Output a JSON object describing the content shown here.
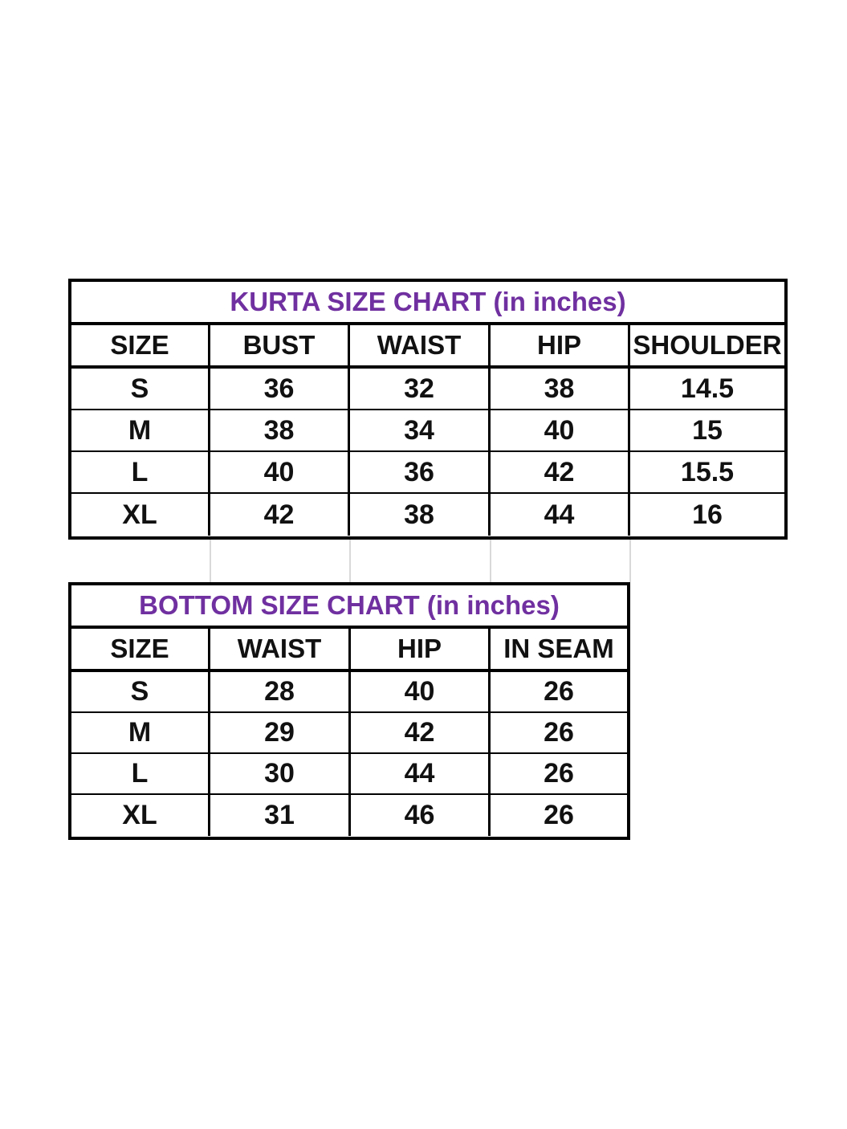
{
  "page": {
    "background_color": "#ffffff",
    "title_color": "#7030a0",
    "text_color": "#111111",
    "border_color": "#000000",
    "gridline_color": "#d9d9d9"
  },
  "tables": [
    {
      "title": "KURTA SIZE CHART (in inches)",
      "headers": [
        "SIZE",
        "BUST",
        "WAIST",
        "HIP",
        "SHOULDER"
      ],
      "rows": [
        [
          "S",
          "36",
          "32",
          "38",
          "14.5"
        ],
        [
          "M",
          "38",
          "34",
          "40",
          "15"
        ],
        [
          "L",
          "40",
          "36",
          "42",
          "15.5"
        ],
        [
          "XL",
          "42",
          "38",
          "44",
          "16"
        ]
      ]
    },
    {
      "title": "BOTTOM SIZE CHART (in inches)",
      "headers": [
        "SIZE",
        "WAIST",
        "HIP",
        "IN SEAM"
      ],
      "rows": [
        [
          "S",
          "28",
          "40",
          "26"
        ],
        [
          "M",
          "29",
          "42",
          "26"
        ],
        [
          "L",
          "30",
          "44",
          "26"
        ],
        [
          "XL",
          "31",
          "46",
          "26"
        ]
      ]
    }
  ]
}
